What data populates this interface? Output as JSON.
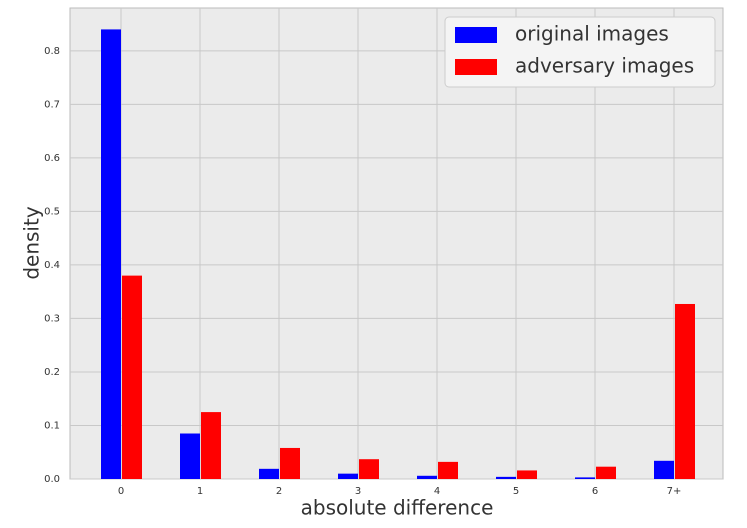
{
  "chart_data": {
    "type": "bar",
    "xlabel": "absolute difference",
    "ylabel": "density",
    "categories": [
      "0",
      "1",
      "2",
      "3",
      "4",
      "5",
      "6",
      "7+"
    ],
    "series": [
      {
        "name": "original images",
        "color": "#0000ff",
        "values": [
          0.84,
          0.085,
          0.019,
          0.01,
          0.006,
          0.004,
          0.003,
          0.034
        ]
      },
      {
        "name": "adversary images",
        "color": "#ff0000",
        "values": [
          0.38,
          0.125,
          0.058,
          0.037,
          0.032,
          0.016,
          0.023,
          0.327
        ]
      }
    ],
    "ylim": [
      0,
      0.88
    ],
    "yticks": [
      {
        "value": 0,
        "label": "0.0"
      },
      0.1,
      0.2,
      0.3,
      0.4,
      0.5,
      0.6,
      0.7,
      0.8
    ],
    "grid": true,
    "legend": "upper right"
  }
}
